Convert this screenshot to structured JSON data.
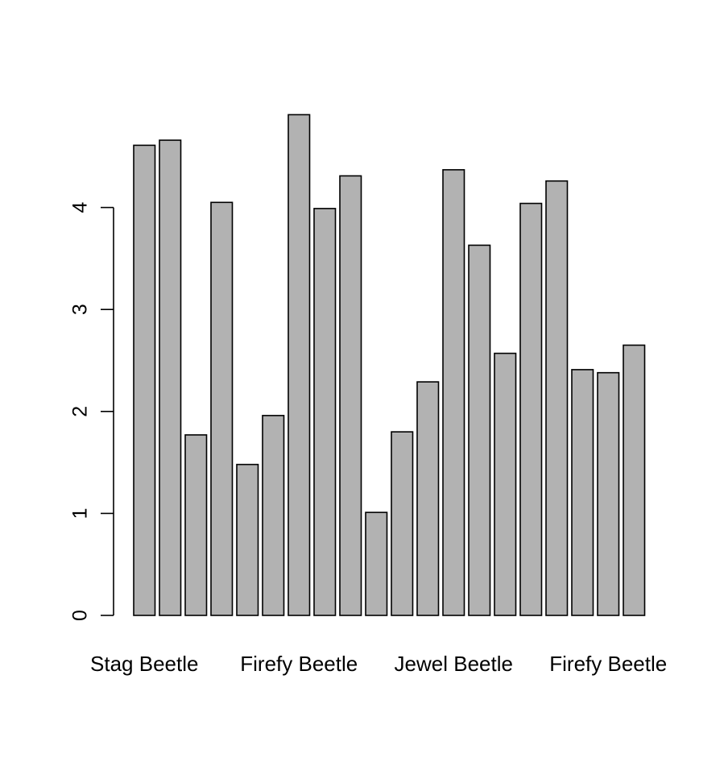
{
  "chart_data": {
    "type": "bar",
    "title": "",
    "xlabel": "",
    "ylabel": "",
    "ylim": [
      0,
      5
    ],
    "yticks": [
      0,
      1,
      2,
      3,
      4
    ],
    "grid": false,
    "bar_color": "#b2b2b2",
    "edge_color": "#000000",
    "visible_category_labels": [
      {
        "bar_index": 0,
        "label": "Stag Beetle"
      },
      {
        "bar_index": 6,
        "label": "Firefy Beetle"
      },
      {
        "bar_index": 12,
        "label": "Jewel Beetle"
      },
      {
        "bar_index": 18,
        "label": "Firefy Beetle"
      }
    ],
    "values": [
      4.61,
      4.66,
      1.77,
      4.05,
      1.48,
      1.96,
      4.91,
      3.99,
      4.31,
      1.01,
      1.8,
      2.29,
      4.37,
      3.63,
      2.57,
      4.04,
      4.26,
      2.41,
      2.38,
      2.65
    ]
  }
}
